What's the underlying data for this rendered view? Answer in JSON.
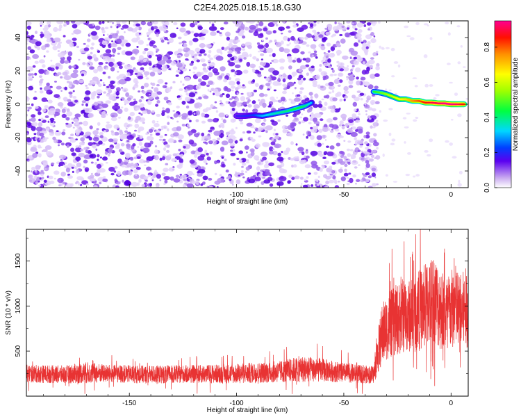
{
  "title": "C2E4.2025.018.15.18.G30",
  "colors": {
    "snr_line": "#e83333",
    "ridge_low": "#1020d8",
    "noise": "#8a2be2"
  },
  "chart_data": [
    {
      "type": "heatmap",
      "xlabel": "Height of straight line (km)",
      "ylabel": "Frequency (Hz)",
      "xlim": [
        -198,
        8
      ],
      "ylim": [
        -50,
        50
      ],
      "x_ticks": [
        -150,
        -100,
        -50,
        0
      ],
      "x_tick_labels": [
        "-150",
        "-100",
        "-50",
        "0"
      ],
      "y_ticks": [
        -40,
        -20,
        0,
        20,
        40
      ],
      "y_tick_labels": [
        "-40",
        "-20",
        "0",
        "20",
        "40"
      ],
      "colorbar": {
        "label": "Normalized spectral amplitude",
        "range": [
          0,
          0.95
        ],
        "ticks": [
          0.0,
          0.2,
          0.4,
          0.6,
          0.8
        ],
        "tick_labels": [
          "0.0",
          "0.2",
          "0.4",
          "0.6",
          "0.8"
        ],
        "colormap": "rainbow-white-to-magenta"
      },
      "noise_region": {
        "x_range": [
          -198,
          -36
        ],
        "y_range": [
          -50,
          50
        ],
        "level": 0.1
      },
      "ridge": {
        "x": [
          -100,
          -96,
          -92,
          -88,
          -84,
          -80,
          -76,
          -72,
          -68,
          -65,
          -36,
          -33,
          -30,
          -27,
          -24,
          -21,
          -18,
          -15,
          -12,
          -9,
          -6,
          -3,
          0,
          3,
          6
        ],
        "y": [
          -7,
          -7,
          -6.5,
          -7,
          -6,
          -5,
          -4,
          -2.5,
          -1,
          1,
          7.5,
          7,
          6,
          4.5,
          3,
          3,
          2,
          2,
          1,
          1,
          0.5,
          0.5,
          0,
          0,
          0
        ],
        "amplitude": [
          0.18,
          0.2,
          0.22,
          0.3,
          0.35,
          0.38,
          0.4,
          0.45,
          0.4,
          0.3,
          0.45,
          0.5,
          0.55,
          0.6,
          0.65,
          0.68,
          0.75,
          0.8,
          0.85,
          0.9,
          0.92,
          0.95,
          0.95,
          0.92,
          0.85
        ]
      }
    },
    {
      "type": "line",
      "xlabel": "Height of straight line (km)",
      "ylabel": "SNR (10 * v/v)",
      "xlim": [
        -198,
        8
      ],
      "ylim": [
        0,
        1850
      ],
      "x_ticks": [
        -150,
        -100,
        -50,
        0
      ],
      "x_tick_labels": [
        "-150",
        "-100",
        "-50",
        "0"
      ],
      "y_ticks": [
        500,
        1000,
        1500
      ],
      "y_tick_labels": [
        "500",
        "1000",
        "1500"
      ],
      "series": [
        {
          "x": [
            -198,
            -180,
            -170,
            -160,
            -140,
            -120,
            -100,
            -80,
            -70,
            -60,
            -50,
            -40,
            -36,
            -34,
            -32,
            -30,
            -28,
            -25,
            -22,
            -20,
            -18,
            -15,
            -12,
            -10,
            -8,
            -6,
            -4,
            -2,
            0,
            2,
            4,
            6,
            8
          ],
          "y_mean": [
            250,
            240,
            260,
            250,
            240,
            245,
            250,
            270,
            300,
            290,
            260,
            240,
            240,
            500,
            700,
            750,
            800,
            850,
            900,
            880,
            900,
            950,
            1000,
            1050,
            1100,
            1000,
            950,
            900,
            950,
            1000,
            900,
            950,
            1000
          ],
          "y_spread": [
            100,
            100,
            120,
            100,
            100,
            100,
            110,
            120,
            150,
            130,
            110,
            100,
            100,
            250,
            350,
            350,
            380,
            400,
            420,
            400,
            420,
            450,
            480,
            500,
            500,
            480,
            450,
            450,
            450,
            480,
            450,
            450,
            450
          ]
        }
      ]
    }
  ]
}
